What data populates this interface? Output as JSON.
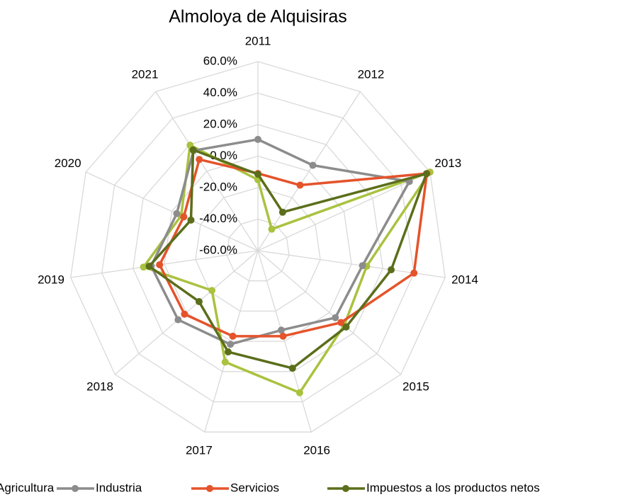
{
  "chart_data": {
    "type": "radar",
    "title": "Almoloya de Alquisiras",
    "categories": [
      "2011",
      "2012",
      "2013",
      "2014",
      "2015",
      "2016",
      "2017",
      "2018",
      "2019",
      "2020",
      "2021"
    ],
    "ylim": [
      -60,
      60
    ],
    "yticks": [
      {
        "value": -60,
        "label": "-60.0%"
      },
      {
        "value": -40,
        "label": "-40.0%"
      },
      {
        "value": -20,
        "label": "-20.0%"
      },
      {
        "value": 0,
        "label": "0.0%"
      },
      {
        "value": 20,
        "label": "20.0%"
      },
      {
        "value": 40,
        "label": "40.0%"
      },
      {
        "value": 60,
        "label": "60.0%"
      }
    ],
    "grid": true,
    "legend": "bottom",
    "series": [
      {
        "name": "Agricultura",
        "color": "#a9c23f",
        "values": [
          -15,
          -43.8,
          60,
          9.7,
          12.4,
          34,
          13.7,
          -21.4,
          13.3,
          -6.5,
          19.6
        ]
      },
      {
        "name": "Industria",
        "color": "#8c8c8c",
        "values": [
          10.6,
          4.4,
          45.6,
          7,
          5,
          -7.4,
          2,
          7,
          8.4,
          -3.4,
          15.5
        ]
      },
      {
        "name": "Servicios",
        "color": "#e5532b",
        "values": [
          -11,
          -10.6,
          57.8,
          40,
          9.7,
          -3.4,
          -3.4,
          1.6,
          3,
          -8.3,
          8.8
        ]
      },
      {
        "name": "Impuestos a los productos netos",
        "color": "#5b6e1b",
        "values": [
          -11.5,
          -31,
          57.5,
          25.4,
          14,
          17.8,
          7,
          -10.6,
          9.7,
          -13.3,
          16
        ]
      }
    ]
  }
}
